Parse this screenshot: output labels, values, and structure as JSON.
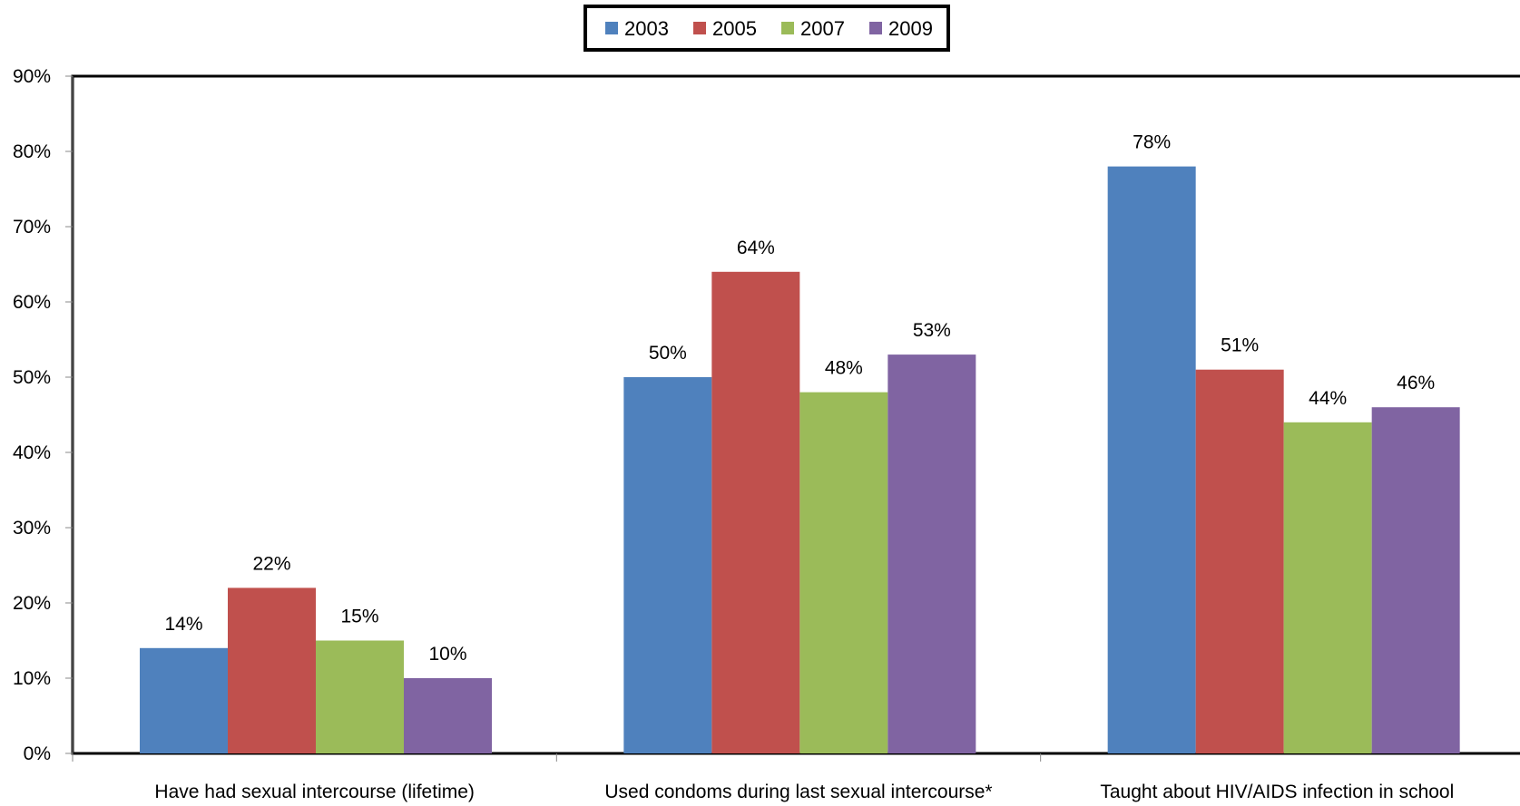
{
  "chart_data": {
    "type": "bar",
    "categories": [
      "Have had sexual intercourse (lifetime)",
      "Used condoms during last sexual intercourse*",
      "Taught about HIV/AIDS infection in school"
    ],
    "series": [
      {
        "name": "2003",
        "color": "#4F81BD",
        "values": [
          14,
          50,
          78
        ],
        "labels": [
          "14%",
          "50%",
          "78%"
        ]
      },
      {
        "name": "2005",
        "color": "#C0504D",
        "values": [
          22,
          64,
          51
        ],
        "labels": [
          "22%",
          "64%",
          "51%"
        ]
      },
      {
        "name": "2007",
        "color": "#9BBB59",
        "values": [
          15,
          48,
          44
        ],
        "labels": [
          "15%",
          "48%",
          "44%"
        ]
      },
      {
        "name": "2009",
        "color": "#8064A2",
        "values": [
          10,
          53,
          46
        ],
        "labels": [
          "10%",
          "53%",
          "46%"
        ]
      }
    ],
    "ylim": [
      0,
      90
    ],
    "yticks": [
      0,
      10,
      20,
      30,
      40,
      50,
      60,
      70,
      80,
      90
    ],
    "ytick_labels": [
      "0%",
      "10%",
      "20%",
      "30%",
      "40%",
      "50%",
      "60%",
      "70%",
      "80%",
      "90%"
    ],
    "grid": false,
    "legend_position": "top-center",
    "title": "",
    "xlabel": "",
    "ylabel": ""
  }
}
